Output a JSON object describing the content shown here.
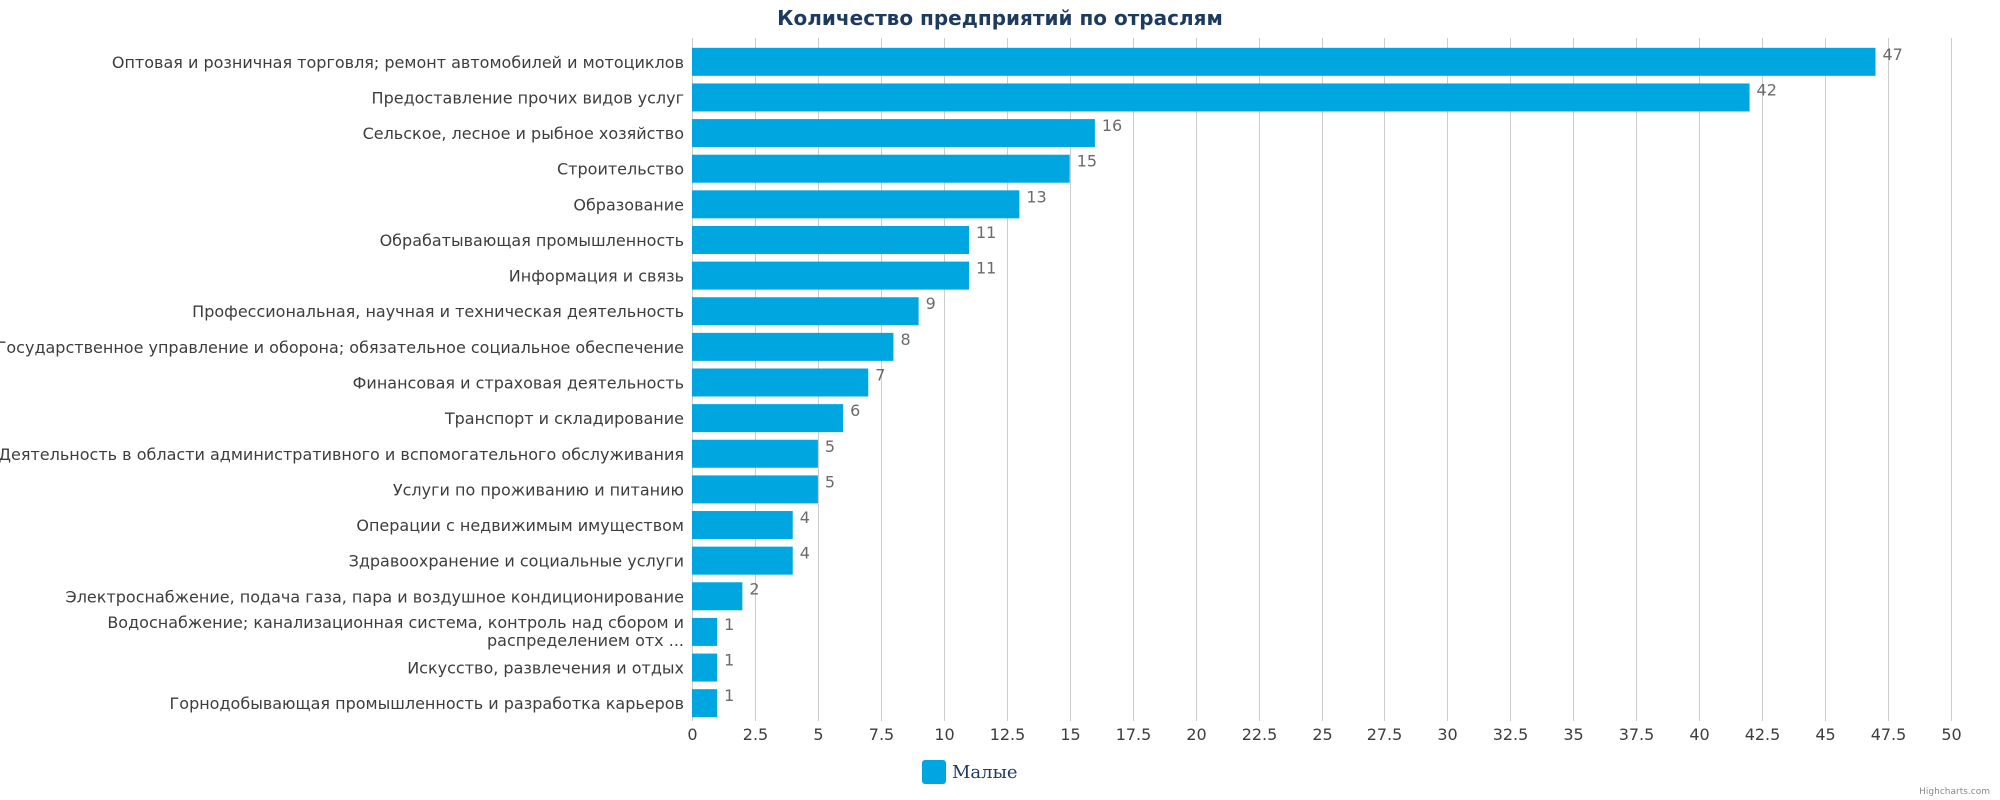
{
  "chart_data": {
    "type": "bar",
    "orientation": "horizontal",
    "title": "Количество предприятий по отраслям",
    "categories": [
      "Оптовая и розничная торговля; ремонт автомобилей и мотоциклов",
      "Предоставление прочих видов услуг",
      "Сельское, лесное и рыбное хозяйство",
      "Строительство",
      "Образование",
      "Обрабатывающая промышленность",
      "Информация и связь",
      "Профессиональная, научная и техническая деятельность",
      "Государственное управление и оборона; обязательное социальное обеспечение",
      "Финансовая и страховая деятельность",
      "Транспорт и складирование",
      "Деятельность в области административного и вспомогательного обслуживания",
      "Услуги по проживанию и питанию",
      "Операции с недвижимым имуществом",
      "Здравоохранение и социальные услуги",
      "Электроснабжение, подача газа, пара и воздушное кондиционирование",
      "Водоснабжение; канализационная система, контроль над сбором и распределением отх ...",
      "Искусство, развлечения и отдых",
      "Горнодобывающая промышленность и разработка карьеров"
    ],
    "series": [
      {
        "name": "Малые",
        "color": "#00a6e0",
        "values": [
          47,
          42,
          16,
          15,
          13,
          11,
          11,
          9,
          8,
          7,
          6,
          5,
          5,
          4,
          4,
          2,
          1,
          1,
          1
        ]
      }
    ],
    "xlim": [
      0,
      50
    ],
    "xticks": [
      "0",
      "2.5",
      "5",
      "7.5",
      "10",
      "12.5",
      "15",
      "17.5",
      "20",
      "22.5",
      "25",
      "27.5",
      "30",
      "32.5",
      "35",
      "37.5",
      "40",
      "42.5",
      "45",
      "47.5",
      "50"
    ],
    "tick_step": 2.5,
    "grid": true,
    "legend_position": "bottom-center"
  },
  "credits": "Highcharts.com"
}
